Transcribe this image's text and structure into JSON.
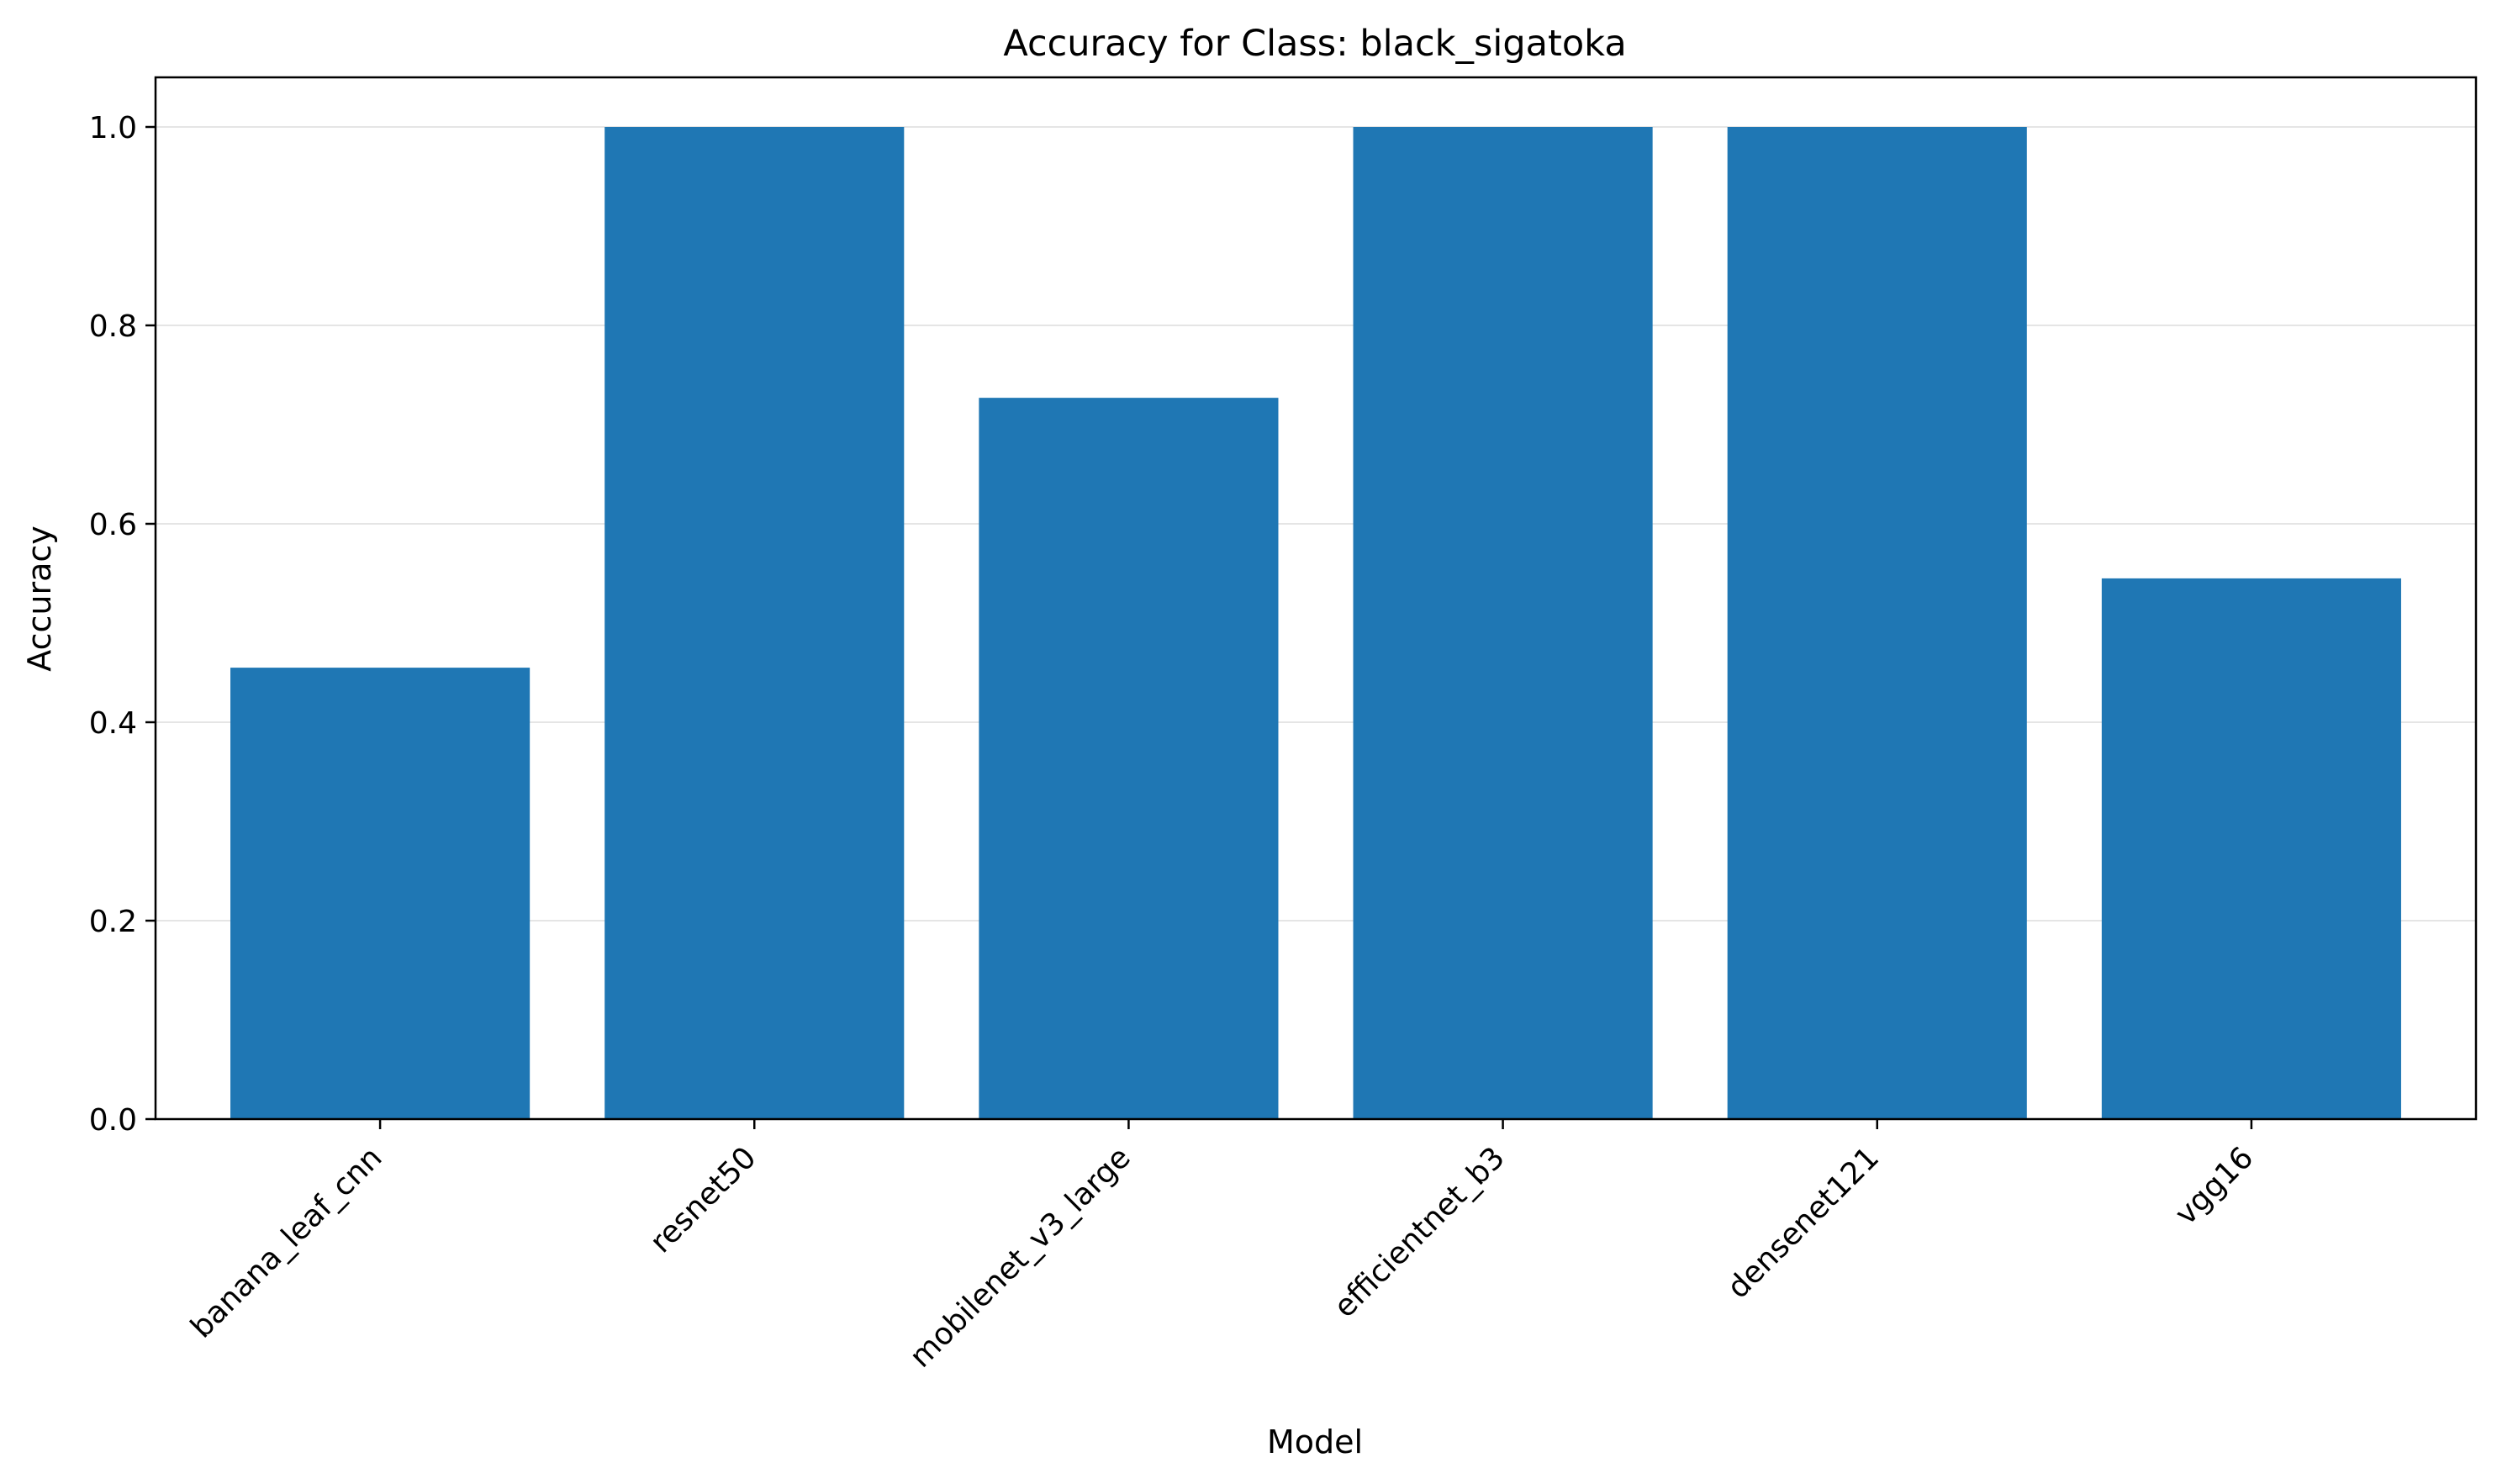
{
  "chart_data": {
    "type": "bar",
    "title": "Accuracy for Class: black_sigatoka",
    "xlabel": "Model",
    "ylabel": "Accuracy",
    "categories": [
      "banana_leaf_cnn",
      "resnet50",
      "mobilenet_v3_large",
      "efficientnet_b3",
      "densenet121",
      "vgg16"
    ],
    "values": [
      0.455,
      1.0,
      0.727,
      1.0,
      1.0,
      0.545
    ],
    "ylim": [
      0,
      1.05
    ],
    "yticks": [
      0.0,
      0.2,
      0.4,
      0.6,
      0.8,
      1.0
    ],
    "ytick_labels": [
      "0.0",
      "0.2",
      "0.4",
      "0.6",
      "0.8",
      "1.0"
    ],
    "grid": "horizontal",
    "bar_color": "#1f77b4",
    "grid_color": "#e5e5e5"
  }
}
